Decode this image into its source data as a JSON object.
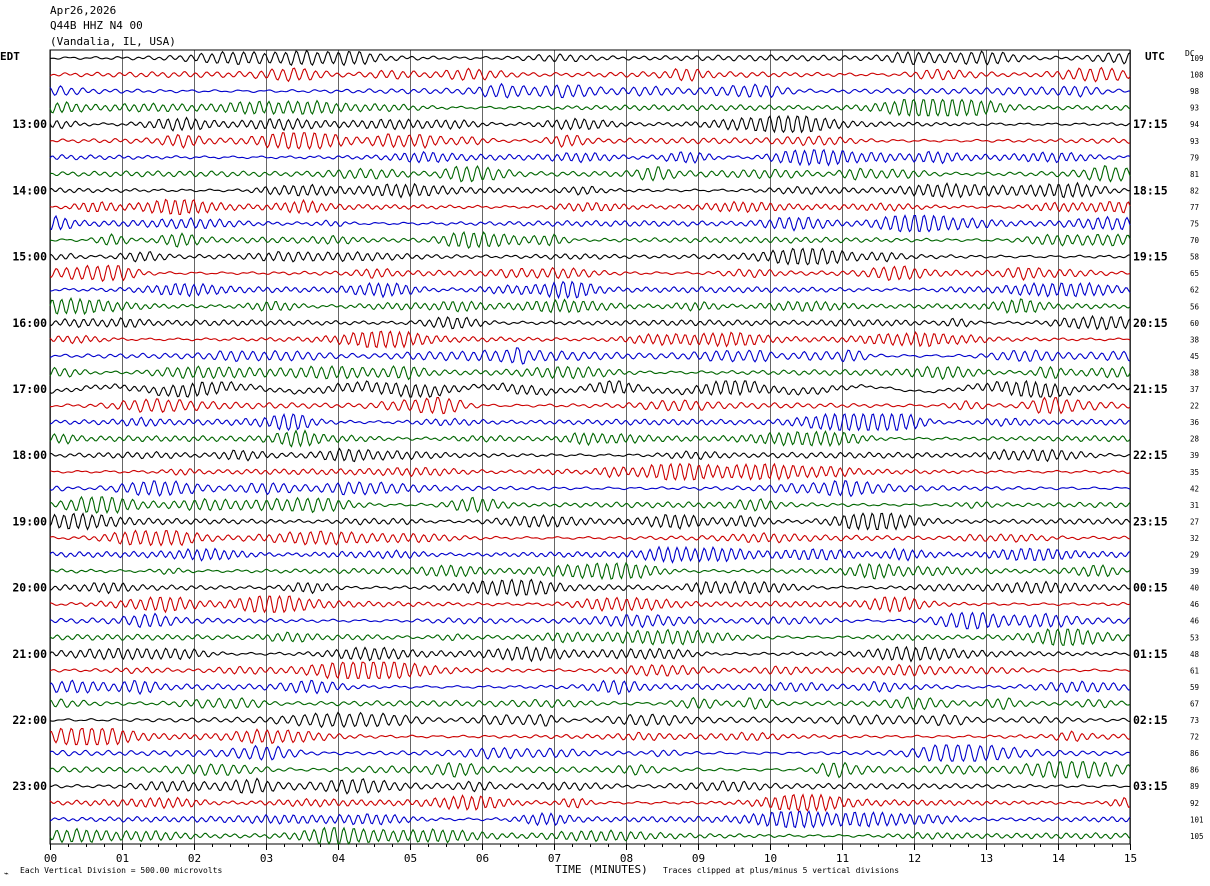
{
  "header": {
    "date": "Apr26,2026",
    "station": "Q44B HHZ N4 00",
    "location": "(Vandalia, IL, USA)"
  },
  "left_tz": "EDT",
  "right_tz": "UTC",
  "dc_label": "DC",
  "footer": {
    "scale_note": "Each Vertical Division =  500.00 microvolts",
    "xaxis_title": "TIME (MINUTES)",
    "clip_note": "Traces clipped at plus/minus 5 vertical divisions",
    "corner_mark": "⌁"
  },
  "colors": {
    "trace_cycle": [
      "#000000",
      "#cc0000",
      "#0000cc",
      "#006600"
    ],
    "grid": "#000000"
  },
  "chart_data": {
    "type": "line",
    "title": "",
    "xlabel": "TIME (MINUTES)",
    "x_ticks": [
      "00",
      "01",
      "02",
      "03",
      "04",
      "05",
      "06",
      "07",
      "08",
      "09",
      "10",
      "11",
      "12",
      "13",
      "14",
      "15"
    ],
    "xlim": [
      0,
      15
    ],
    "grid": true,
    "left_hour_labels": [
      "13:00",
      "14:00",
      "15:00",
      "16:00",
      "17:00",
      "18:00",
      "19:00",
      "20:00",
      "21:00",
      "22:00",
      "23:00"
    ],
    "right_hour_labels": [
      "17:15",
      "18:15",
      "19:15",
      "20:15",
      "21:15",
      "22:15",
      "23:15",
      "00:15",
      "01:15",
      "02:15",
      "03:15"
    ],
    "dc_offsets": [
      109,
      108,
      98,
      93,
      94,
      93,
      79,
      81,
      82,
      77,
      75,
      70,
      58,
      65,
      62,
      56,
      60,
      38,
      45,
      38,
      37,
      22,
      36,
      28,
      39,
      35,
      42,
      31,
      27,
      32,
      29,
      39,
      40,
      46,
      46,
      53,
      48,
      61,
      59,
      67,
      73,
      72,
      86,
      86,
      89,
      92,
      101,
      105
    ],
    "trace_count": 48,
    "minutes_per_trace": 15
  }
}
